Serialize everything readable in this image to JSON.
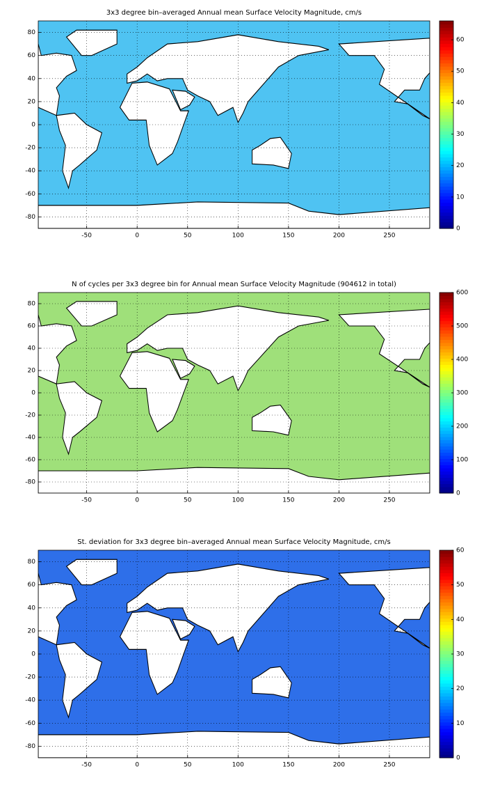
{
  "maps": [
    {
      "type": "heatmap",
      "title": "3x3 degree bin–averaged Annual mean Surface Velocity Magnitude, cm/s",
      "xlim": [
        -98,
        290
      ],
      "ylim": [
        -90,
        90
      ],
      "xticks": [
        -50,
        0,
        50,
        100,
        150,
        200,
        250
      ],
      "yticks": [
        -80,
        -60,
        -40,
        -20,
        0,
        20,
        40,
        60,
        80
      ],
      "grid": true,
      "colormap": "jet",
      "colorbar": {
        "clim": [
          0,
          66
        ],
        "ticks": [
          0,
          10,
          20,
          30,
          40,
          50,
          60
        ]
      }
    },
    {
      "type": "heatmap",
      "title": "N of cycles per 3x3 degree bin for Annual mean Surface Velocity Magnitude (904612 in total)",
      "xlim": [
        -98,
        290
      ],
      "ylim": [
        -90,
        90
      ],
      "xticks": [
        -50,
        0,
        50,
        100,
        150,
        200,
        250
      ],
      "yticks": [
        -80,
        -60,
        -40,
        -20,
        0,
        20,
        40,
        60,
        80
      ],
      "grid": true,
      "colormap": "jet",
      "colorbar": {
        "clim": [
          0,
          600
        ],
        "ticks": [
          0,
          100,
          200,
          300,
          400,
          500,
          600
        ]
      }
    },
    {
      "type": "heatmap",
      "title": "St. deviation for 3x3 degree bin–averaged Annual mean Surface Velocity Magnitude, cm/s",
      "xlim": [
        -98,
        290
      ],
      "ylim": [
        -90,
        90
      ],
      "xticks": [
        -50,
        0,
        50,
        100,
        150,
        200,
        250
      ],
      "yticks": [
        -80,
        -60,
        -40,
        -20,
        0,
        20,
        40,
        60,
        80
      ],
      "grid": true,
      "colormap": "jet",
      "colorbar": {
        "clim": [
          0,
          60
        ],
        "ticks": [
          0,
          10,
          20,
          30,
          40,
          50,
          60
        ]
      }
    }
  ]
}
